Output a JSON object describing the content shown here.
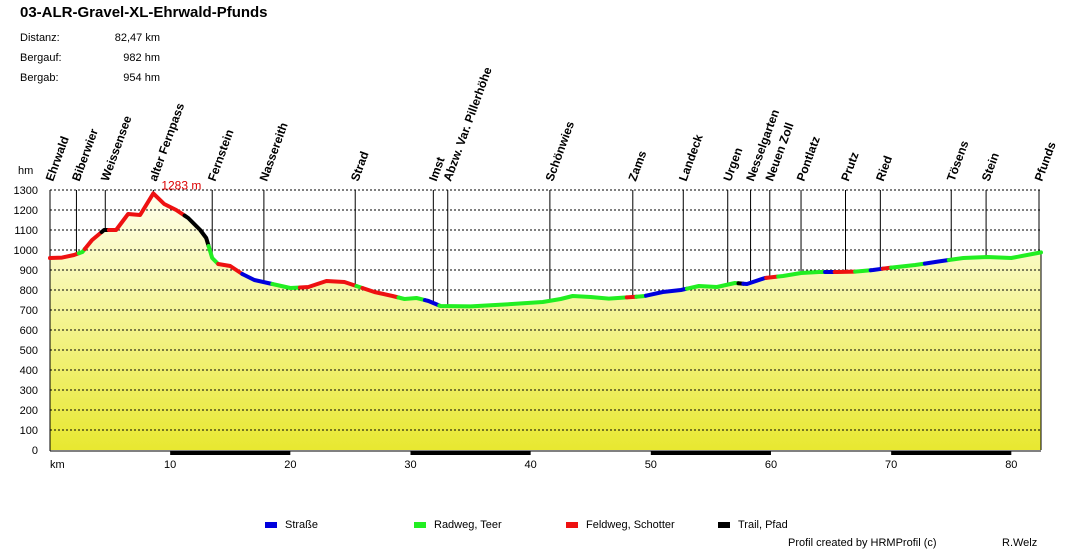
{
  "title": "03-ALR-Gravel-XL-Ehrwald-Pfunds",
  "stats": [
    {
      "label": "Distanz:",
      "value": "82,47 km"
    },
    {
      "label": "Bergauf:",
      "value": "982 hm"
    },
    {
      "label": "Bergab:",
      "value": "954 hm"
    }
  ],
  "chart_data": {
    "type": "area",
    "title": "03-ALR-Gravel-XL-Ehrwald-Pfunds",
    "xlabel": "km",
    "ylabel": "hm",
    "xlim": [
      0,
      82.47
    ],
    "ylim": [
      0,
      1300
    ],
    "xticks": [
      10,
      20,
      30,
      40,
      50,
      60,
      70,
      80
    ],
    "yticks": [
      0,
      100,
      200,
      300,
      400,
      500,
      600,
      700,
      800,
      900,
      1000,
      1100,
      1200,
      1300
    ],
    "grid": true,
    "max_label": "1283 m",
    "max_point": {
      "x": 8.6,
      "y": 1283
    },
    "colors": {
      "strasse": "#0000dd",
      "radweg": "#22ee22",
      "feldweg": "#ee1111",
      "trail": "#000000",
      "fill_top": "#ffffee",
      "fill_bottom": "#e8e830",
      "max_label": "#dd0000"
    },
    "profile": [
      {
        "x": 0,
        "y": 960
      },
      {
        "x": 1,
        "y": 962
      },
      {
        "x": 2,
        "y": 975
      },
      {
        "x": 2.7,
        "y": 990
      },
      {
        "x": 3.5,
        "y": 1050
      },
      {
        "x": 4.5,
        "y": 1100
      },
      {
        "x": 5.5,
        "y": 1100
      },
      {
        "x": 6.5,
        "y": 1180
      },
      {
        "x": 7.5,
        "y": 1175
      },
      {
        "x": 8.6,
        "y": 1283
      },
      {
        "x": 9.5,
        "y": 1230
      },
      {
        "x": 10.5,
        "y": 1200
      },
      {
        "x": 11.5,
        "y": 1160
      },
      {
        "x": 12.5,
        "y": 1100
      },
      {
        "x": 13,
        "y": 1060
      },
      {
        "x": 13.5,
        "y": 960
      },
      {
        "x": 14,
        "y": 930
      },
      {
        "x": 15,
        "y": 920
      },
      {
        "x": 16,
        "y": 880
      },
      {
        "x": 17,
        "y": 850
      },
      {
        "x": 18.5,
        "y": 830
      },
      {
        "x": 20,
        "y": 810
      },
      {
        "x": 21.5,
        "y": 815
      },
      {
        "x": 23,
        "y": 845
      },
      {
        "x": 24.5,
        "y": 840
      },
      {
        "x": 25.5,
        "y": 820
      },
      {
        "x": 27,
        "y": 790
      },
      {
        "x": 28.5,
        "y": 770
      },
      {
        "x": 29.5,
        "y": 755
      },
      {
        "x": 30.5,
        "y": 760
      },
      {
        "x": 31.5,
        "y": 745
      },
      {
        "x": 32.5,
        "y": 720
      },
      {
        "x": 35,
        "y": 718
      },
      {
        "x": 38,
        "y": 728
      },
      {
        "x": 41,
        "y": 740
      },
      {
        "x": 42.5,
        "y": 755
      },
      {
        "x": 43.5,
        "y": 770
      },
      {
        "x": 45,
        "y": 765
      },
      {
        "x": 46.5,
        "y": 757
      },
      {
        "x": 48,
        "y": 763
      },
      {
        "x": 49.5,
        "y": 770
      },
      {
        "x": 51,
        "y": 790
      },
      {
        "x": 52.5,
        "y": 800
      },
      {
        "x": 54,
        "y": 820
      },
      {
        "x": 55.5,
        "y": 815
      },
      {
        "x": 57,
        "y": 835
      },
      {
        "x": 58,
        "y": 830
      },
      {
        "x": 59.5,
        "y": 860
      },
      {
        "x": 61,
        "y": 870
      },
      {
        "x": 62.5,
        "y": 885
      },
      {
        "x": 64,
        "y": 890
      },
      {
        "x": 65.5,
        "y": 890
      },
      {
        "x": 67,
        "y": 892
      },
      {
        "x": 68.5,
        "y": 900
      },
      {
        "x": 70,
        "y": 912
      },
      {
        "x": 72,
        "y": 925
      },
      {
        "x": 74,
        "y": 943
      },
      {
        "x": 76,
        "y": 960
      },
      {
        "x": 78,
        "y": 965
      },
      {
        "x": 80,
        "y": 960
      },
      {
        "x": 82.47,
        "y": 988
      }
    ],
    "segments": [
      {
        "type": "feldweg",
        "from": 0,
        "to": 2.4
      },
      {
        "type": "radweg",
        "from": 2.4,
        "to": 2.9
      },
      {
        "type": "feldweg",
        "from": 2.9,
        "to": 4.3
      },
      {
        "type": "trail",
        "from": 4.3,
        "to": 4.9
      },
      {
        "type": "feldweg",
        "from": 4.9,
        "to": 11.2
      },
      {
        "type": "trail",
        "from": 11.2,
        "to": 13.2
      },
      {
        "type": "radweg",
        "from": 13.2,
        "to": 14
      },
      {
        "type": "feldweg",
        "from": 14,
        "to": 16
      },
      {
        "type": "strasse",
        "from": 16,
        "to": 18.5
      },
      {
        "type": "radweg",
        "from": 18.5,
        "to": 20.8
      },
      {
        "type": "feldweg",
        "from": 20.8,
        "to": 25.5
      },
      {
        "type": "radweg",
        "from": 25.5,
        "to": 26
      },
      {
        "type": "feldweg",
        "from": 26,
        "to": 29
      },
      {
        "type": "radweg",
        "from": 29,
        "to": 31.2
      },
      {
        "type": "strasse",
        "from": 31.2,
        "to": 32.4
      },
      {
        "type": "radweg",
        "from": 32.4,
        "to": 48
      },
      {
        "type": "feldweg",
        "from": 48,
        "to": 48.8
      },
      {
        "type": "radweg",
        "from": 48.8,
        "to": 49.6
      },
      {
        "type": "strasse",
        "from": 49.6,
        "to": 53
      },
      {
        "type": "radweg",
        "from": 53,
        "to": 57.3
      },
      {
        "type": "trail",
        "from": 57.3,
        "to": 57.7
      },
      {
        "type": "strasse",
        "from": 57.7,
        "to": 59.6
      },
      {
        "type": "feldweg",
        "from": 59.6,
        "to": 60.6
      },
      {
        "type": "radweg",
        "from": 60.6,
        "to": 64.5
      },
      {
        "type": "strasse",
        "from": 64.5,
        "to": 65.3
      },
      {
        "type": "feldweg",
        "from": 65.3,
        "to": 67
      },
      {
        "type": "radweg",
        "from": 67,
        "to": 68.3
      },
      {
        "type": "strasse",
        "from": 68.3,
        "to": 69.3
      },
      {
        "type": "feldweg",
        "from": 69.3,
        "to": 70
      },
      {
        "type": "radweg",
        "from": 70,
        "to": 72.8
      },
      {
        "type": "strasse",
        "from": 72.8,
        "to": 74.8
      },
      {
        "type": "radweg",
        "from": 74.8,
        "to": 82.47
      }
    ],
    "waypoints": [
      {
        "name": "Ehrwald",
        "x": 0
      },
      {
        "name": "Biberwier",
        "x": 2.2
      },
      {
        "name": "Weissensee",
        "x": 4.6
      },
      {
        "name": "alter Fernpass",
        "x": 8.6
      },
      {
        "name": "Fernstein",
        "x": 13.5
      },
      {
        "name": "Nassereith",
        "x": 17.8
      },
      {
        "name": "Strad",
        "x": 25.4
      },
      {
        "name": "Imst",
        "x": 31.9
      },
      {
        "name": "Abzw. Var. Pillerhöhe",
        "x": 33.1
      },
      {
        "name": "Schönwies",
        "x": 41.6
      },
      {
        "name": "Zams",
        "x": 48.5
      },
      {
        "name": "Landeck",
        "x": 52.7
      },
      {
        "name": "Urgen",
        "x": 56.4
      },
      {
        "name": "Nesselgarten",
        "x": 58.3
      },
      {
        "name": "Neuen Zoll",
        "x": 59.9
      },
      {
        "name": "Pontlatz",
        "x": 62.5
      },
      {
        "name": "Prutz",
        "x": 66.2
      },
      {
        "name": "Ried",
        "x": 69.1
      },
      {
        "name": "Tösens",
        "x": 75
      },
      {
        "name": "Stein",
        "x": 77.9
      },
      {
        "name": "Pfunds",
        "x": 82.47
      }
    ]
  },
  "legend": [
    {
      "label": "Straße",
      "key": "strasse"
    },
    {
      "label": "Radweg, Teer",
      "key": "radweg"
    },
    {
      "label": "Feldweg, Schotter",
      "key": "feldweg"
    },
    {
      "label": "Trail, Pfad",
      "key": "trail"
    }
  ],
  "footer": {
    "credit": "Profil created by HRMProfil (c)",
    "author": "R.Welz"
  }
}
